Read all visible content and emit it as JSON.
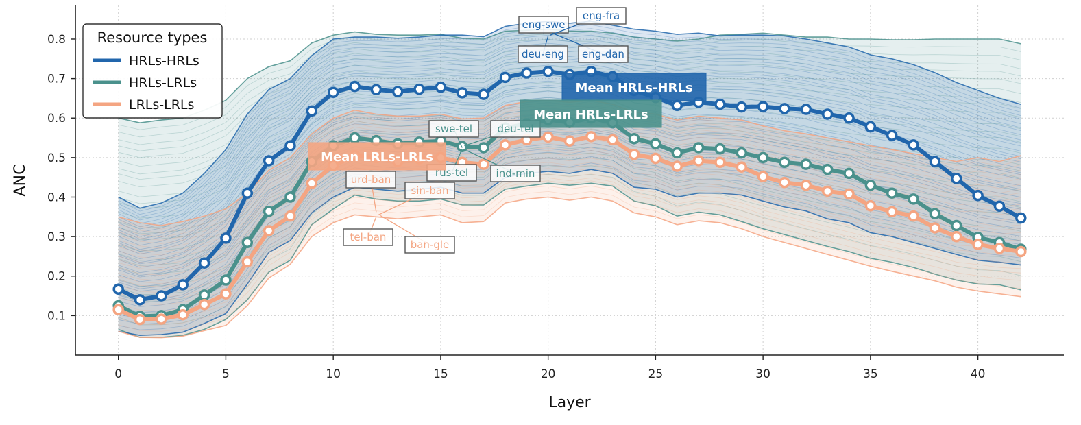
{
  "chart_data": {
    "type": "line",
    "xlabel": "Layer",
    "ylabel": "ANC",
    "xlim": [
      -2,
      44
    ],
    "ylim": [
      0.0,
      0.885
    ],
    "xticks": [
      0,
      5,
      10,
      15,
      20,
      25,
      30,
      35,
      40
    ],
    "yticks": [
      0.1,
      0.2,
      0.3,
      0.4,
      0.5,
      0.6,
      0.7,
      0.8
    ],
    "grid": true,
    "legend": {
      "title": "Resource types",
      "placement": "top-left",
      "entries": [
        "HRLs-HRLs",
        "HRLs-LRLs",
        "LRLs-LRLs"
      ]
    },
    "colors": {
      "HRLs-HRLs": "#2166ac",
      "HRLs-LRLs": "#4a918c",
      "LRLs-LRLs": "#f4a582"
    },
    "x": [
      0,
      1,
      2,
      3,
      4,
      5,
      6,
      7,
      8,
      9,
      10,
      11,
      12,
      13,
      14,
      15,
      16,
      17,
      18,
      19,
      20,
      21,
      22,
      23,
      24,
      25,
      26,
      27,
      28,
      29,
      30,
      31,
      32,
      33,
      34,
      35,
      36,
      37,
      38,
      39,
      40,
      41,
      42
    ],
    "series": [
      {
        "name": "Mean HRLs-HRLs",
        "values": [
          0.167,
          0.14,
          0.15,
          0.178,
          0.233,
          0.296,
          0.41,
          0.492,
          0.53,
          0.618,
          0.665,
          0.68,
          0.672,
          0.667,
          0.673,
          0.678,
          0.664,
          0.66,
          0.703,
          0.714,
          0.718,
          0.71,
          0.718,
          0.705,
          0.67,
          0.652,
          0.632,
          0.64,
          0.635,
          0.628,
          0.629,
          0.624,
          0.622,
          0.61,
          0.6,
          0.578,
          0.556,
          0.532,
          0.49,
          0.447,
          0.404,
          0.377,
          0.347
        ]
      },
      {
        "name": "Mean HRLs-LRLs",
        "values": [
          0.125,
          0.098,
          0.1,
          0.115,
          0.152,
          0.19,
          0.285,
          0.364,
          0.4,
          0.49,
          0.53,
          0.55,
          0.543,
          0.535,
          0.539,
          0.542,
          0.528,
          0.525,
          0.575,
          0.585,
          0.596,
          0.589,
          0.6,
          0.588,
          0.548,
          0.535,
          0.512,
          0.525,
          0.522,
          0.512,
          0.5,
          0.488,
          0.483,
          0.47,
          0.46,
          0.43,
          0.41,
          0.395,
          0.358,
          0.328,
          0.298,
          0.285,
          0.268
        ]
      },
      {
        "name": "Mean LRLs-LRLs",
        "values": [
          0.115,
          0.09,
          0.091,
          0.102,
          0.128,
          0.155,
          0.236,
          0.315,
          0.352,
          0.435,
          0.48,
          0.505,
          0.5,
          0.49,
          0.497,
          0.5,
          0.488,
          0.483,
          0.532,
          0.545,
          0.552,
          0.542,
          0.553,
          0.545,
          0.508,
          0.498,
          0.478,
          0.492,
          0.488,
          0.476,
          0.452,
          0.437,
          0.43,
          0.415,
          0.408,
          0.378,
          0.363,
          0.352,
          0.322,
          0.3,
          0.28,
          0.27,
          0.262
        ]
      }
    ],
    "bands": [
      {
        "name": "HRLs-HRLs",
        "upper": [
          0.4,
          0.372,
          0.385,
          0.41,
          0.46,
          0.52,
          0.61,
          0.672,
          0.7,
          0.758,
          0.8,
          0.805,
          0.805,
          0.802,
          0.805,
          0.81,
          0.81,
          0.806,
          0.832,
          0.84,
          0.845,
          0.84,
          0.845,
          0.835,
          0.825,
          0.82,
          0.812,
          0.815,
          0.808,
          0.81,
          0.81,
          0.808,
          0.8,
          0.79,
          0.78,
          0.76,
          0.75,
          0.735,
          0.715,
          0.69,
          0.67,
          0.65,
          0.635
        ],
        "lower": [
          0.06,
          0.05,
          0.052,
          0.058,
          0.08,
          0.105,
          0.18,
          0.26,
          0.29,
          0.36,
          0.4,
          0.425,
          0.42,
          0.415,
          0.42,
          0.425,
          0.41,
          0.41,
          0.45,
          0.46,
          0.465,
          0.46,
          0.47,
          0.46,
          0.425,
          0.42,
          0.4,
          0.41,
          0.41,
          0.405,
          0.39,
          0.375,
          0.365,
          0.345,
          0.335,
          0.31,
          0.3,
          0.285,
          0.27,
          0.255,
          0.24,
          0.235,
          0.228
        ]
      },
      {
        "name": "HRLs-LRLs",
        "upper": [
          0.6,
          0.588,
          0.595,
          0.6,
          0.62,
          0.645,
          0.7,
          0.73,
          0.745,
          0.79,
          0.81,
          0.818,
          0.812,
          0.81,
          0.81,
          0.812,
          0.802,
          0.8,
          0.82,
          0.822,
          0.825,
          0.82,
          0.82,
          0.815,
          0.805,
          0.8,
          0.795,
          0.8,
          0.81,
          0.812,
          0.815,
          0.81,
          0.805,
          0.805,
          0.8,
          0.8,
          0.798,
          0.798,
          0.8,
          0.8,
          0.8,
          0.8,
          0.788
        ],
        "lower": [
          0.065,
          0.045,
          0.045,
          0.05,
          0.065,
          0.09,
          0.14,
          0.21,
          0.24,
          0.33,
          0.37,
          0.405,
          0.395,
          0.39,
          0.39,
          0.395,
          0.38,
          0.38,
          0.42,
          0.428,
          0.435,
          0.43,
          0.435,
          0.428,
          0.39,
          0.378,
          0.352,
          0.362,
          0.355,
          0.338,
          0.32,
          0.305,
          0.29,
          0.275,
          0.262,
          0.245,
          0.235,
          0.222,
          0.205,
          0.19,
          0.18,
          0.178,
          0.165
        ]
      },
      {
        "name": "LRLs-LRLs",
        "upper": [
          0.35,
          0.335,
          0.328,
          0.338,
          0.352,
          0.37,
          0.41,
          0.468,
          0.5,
          0.56,
          0.6,
          0.62,
          0.61,
          0.605,
          0.605,
          0.61,
          0.598,
          0.6,
          0.632,
          0.642,
          0.645,
          0.64,
          0.645,
          0.635,
          0.615,
          0.61,
          0.595,
          0.605,
          0.6,
          0.595,
          0.58,
          0.568,
          0.56,
          0.55,
          0.54,
          0.53,
          0.52,
          0.51,
          0.5,
          0.49,
          0.5,
          0.49,
          0.505
        ],
        "lower": [
          0.06,
          0.045,
          0.044,
          0.048,
          0.062,
          0.075,
          0.125,
          0.195,
          0.23,
          0.3,
          0.335,
          0.355,
          0.35,
          0.345,
          0.35,
          0.355,
          0.335,
          0.338,
          0.385,
          0.395,
          0.4,
          0.392,
          0.4,
          0.39,
          0.36,
          0.35,
          0.33,
          0.34,
          0.335,
          0.32,
          0.3,
          0.285,
          0.27,
          0.255,
          0.24,
          0.225,
          0.212,
          0.2,
          0.188,
          0.172,
          0.162,
          0.155,
          0.148
        ]
      }
    ],
    "annotations": [
      {
        "text": "eng-swe",
        "group": "HRLs-HRLs",
        "x": 19.8,
        "y": 0.812
      },
      {
        "text": "eng-fra",
        "group": "HRLs-HRLs",
        "x": 20.1,
        "y": 0.81
      },
      {
        "text": "deu-eng",
        "group": "HRLs-HRLs",
        "x": 20.0,
        "y": 0.808
      },
      {
        "text": "eng-dan",
        "group": "HRLs-HRLs",
        "x": 20.2,
        "y": 0.815
      },
      {
        "text": "swe-tel",
        "group": "HRLs-LRLs",
        "x": 16.0,
        "y": 0.525
      },
      {
        "text": "deu-tel",
        "group": "HRLs-LRLs",
        "x": 16.1,
        "y": 0.53
      },
      {
        "text": "rus-tel",
        "group": "HRLs-LRLs",
        "x": 16.0,
        "y": 0.522
      },
      {
        "text": "ind-min",
        "group": "HRLs-LRLs",
        "x": 16.2,
        "y": 0.518
      },
      {
        "text": "urd-ban",
        "group": "LRLs-LRLs",
        "x": 12.0,
        "y": 0.362
      },
      {
        "text": "sin-ban",
        "group": "LRLs-LRLs",
        "x": 12.1,
        "y": 0.355
      },
      {
        "text": "tel-ban",
        "group": "LRLs-LRLs",
        "x": 12.0,
        "y": 0.35
      },
      {
        "text": "ban-gle",
        "group": "LRLs-LRLs",
        "x": 12.2,
        "y": 0.353
      }
    ]
  }
}
